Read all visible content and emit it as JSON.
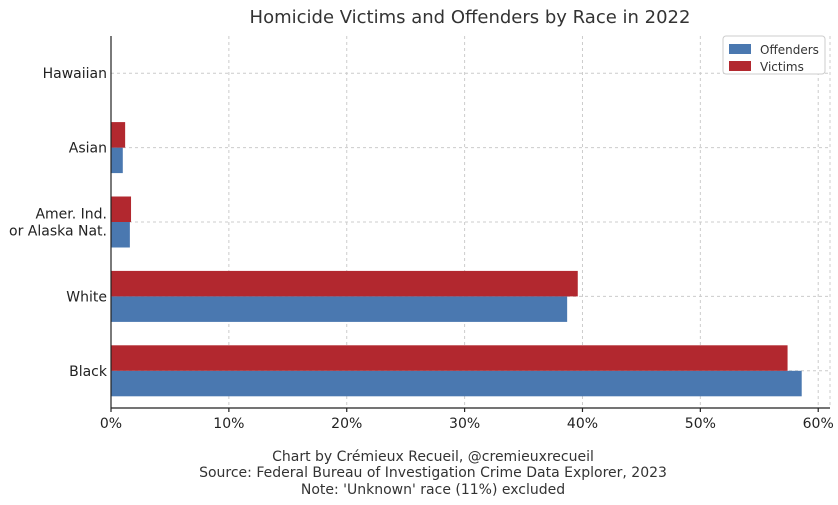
{
  "chart_data": {
    "type": "bar",
    "orientation": "horizontal",
    "title": "Homicide Victims and Offenders by Race in 2022",
    "categories": [
      "Black",
      "White",
      "Amer. Ind.\nor Alaska Nat.",
      "Asian",
      "Hawaiian"
    ],
    "series": [
      {
        "name": "Offenders",
        "color": "#4a78b0",
        "values": [
          58.6,
          38.7,
          1.6,
          1.0,
          0.0
        ]
      },
      {
        "name": "Victims",
        "color": "#b2282f",
        "values": [
          57.4,
          39.6,
          1.7,
          1.2,
          0.0
        ]
      }
    ],
    "xlim": [
      0,
      61
    ],
    "x_ticks": [
      0,
      10,
      20,
      30,
      40,
      50,
      60
    ],
    "x_tick_labels": [
      "0%",
      "10%",
      "20%",
      "30%",
      "40%",
      "50%",
      "60%"
    ],
    "grid": true,
    "legend_position": "top-right"
  },
  "footer": {
    "line1": "Chart by Crémieux Recueil, @cremieuxrecueil",
    "line2": "Source: Federal Bureau of Investigation Crime Data Explorer, 2023",
    "line3": "Note: 'Unknown' race (11%) excluded"
  }
}
